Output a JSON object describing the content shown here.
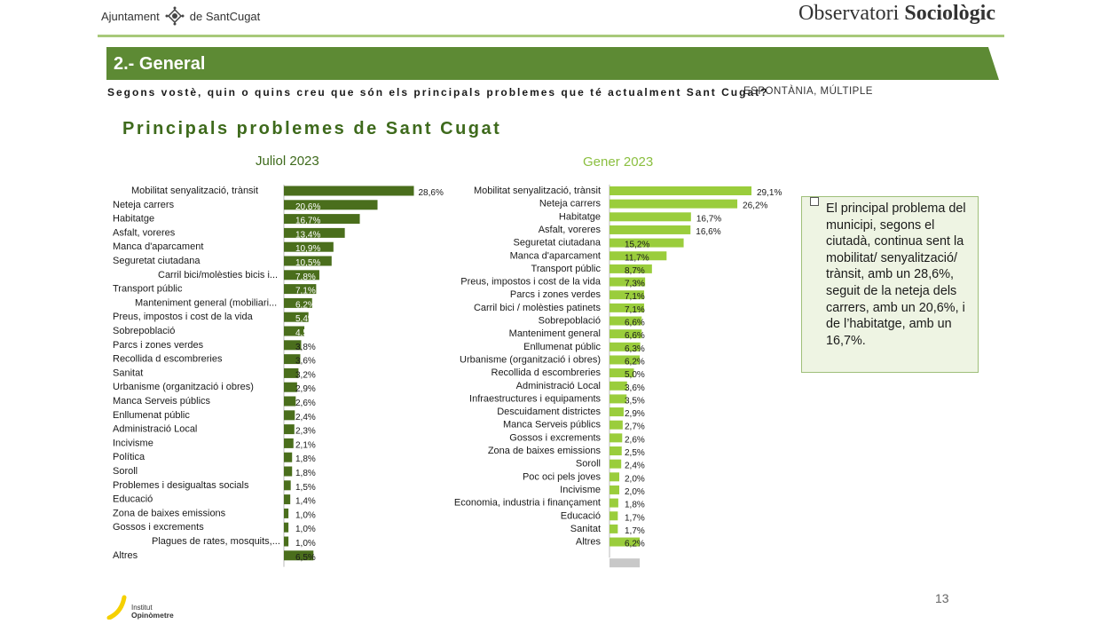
{
  "header": {
    "logo_left_text_1": "Ajuntament",
    "logo_left_text_2": "de SantCugat",
    "logo_right_light": "Observatori",
    "logo_right_bold": "Sociològic"
  },
  "section": {
    "title": "2.- General"
  },
  "question": "Segons vostè, quin o quins creu que són els principals problemes que té actualment Sant Cugat?",
  "answer_type": "ESPONTÀNIA, MÚLTIPLE",
  "chart_title": "Principals problemes de Sant Cugat",
  "colors": {
    "jul_bar": "#4a6e1c",
    "gen_bar": "#9acd3c",
    "other_bar": "#c8c8c8",
    "band": "#5d8a34"
  },
  "chart_data": [
    {
      "type": "bar",
      "orientation": "horizontal",
      "title": "Juliol 2023",
      "categories": [
        "Mobilitat senyalització, trànsit",
        "Neteja carrers",
        "Habitatge",
        "Asfalt, voreres",
        "Manca d'aparcament",
        "Seguretat ciutadana",
        "Carril bici/molèsties bicis i...",
        "Transport públic",
        "Manteniment general (mobiliari...",
        "Preus, impostos i cost de la vida",
        "Sobrepoblació",
        "Parcs i zones verdes",
        "Recollida d escombreries",
        "Sanitat",
        "Urbanisme (organització i obres)",
        "Manca Serveis públics",
        "Enllumenat públic",
        "Administració Local",
        "Incivisme",
        "Política",
        "Soroll",
        "Problemes i desigualtas socials",
        "Educació",
        "Zona de baixes emissions",
        "Gossos i excrements",
        "Plagues de rates, mosquits,...",
        "Altres"
      ],
      "values": [
        28.6,
        20.6,
        16.7,
        13.4,
        10.9,
        10.5,
        7.8,
        7.1,
        6.2,
        5.4,
        4.5,
        3.8,
        3.6,
        3.2,
        2.9,
        2.6,
        2.4,
        2.3,
        2.1,
        1.8,
        1.8,
        1.5,
        1.4,
        1.0,
        1.0,
        1.0,
        6.5
      ],
      "value_labels": [
        "28,6%",
        "20,6%",
        "16,7%",
        "13,4%",
        "10,9%",
        "10,5%",
        "7,8%",
        "7,1%",
        "6,2%",
        "5,4%",
        "4,5%",
        "3,8%",
        "3,6%",
        "3,2%",
        "2,9%",
        "2,6%",
        "2,4%",
        "2,3%",
        "2,1%",
        "1,8%",
        "1,8%",
        "1,5%",
        "1,4%",
        "1,0%",
        "1,0%",
        "1,0%",
        "6,5%"
      ]
    },
    {
      "type": "bar",
      "orientation": "horizontal",
      "title": "Gener 2023",
      "categories": [
        "Mobilitat senyalització, trànsit",
        "Neteja carrers",
        "Habitatge",
        "Asfalt, voreres",
        "Seguretat ciutadana",
        "Manca d'aparcament",
        "Transport públic",
        "Preus, impostos i cost de la vida",
        "Parcs i zones verdes",
        "Carril bici / molèsties patinets",
        "Sobrepoblació",
        "Manteniment general",
        "Enllumenat públic",
        "Urbanisme (organització i obres)",
        "Recollida d escombreries",
        "Administració Local",
        "Infraestructures i equipaments",
        "Descuidament districtes",
        "Manca Serveis públics",
        "Gossos i excrements",
        "Zona de baixes emissions",
        "Soroll",
        "Poc oci pels joves",
        "Incivisme",
        "Economia, industria i finançament",
        "Educació",
        "Sanitat",
        "Altres"
      ],
      "values": [
        29.1,
        26.2,
        16.7,
        16.6,
        15.2,
        11.7,
        8.7,
        7.3,
        7.1,
        7.1,
        6.6,
        6.6,
        6.3,
        6.2,
        5.0,
        3.6,
        3.5,
        2.9,
        2.7,
        2.6,
        2.5,
        2.4,
        2.0,
        2.0,
        1.8,
        1.7,
        1.7,
        6.2
      ],
      "value_labels": [
        "29,1%",
        "26,2%",
        "16,7%",
        "16,6%",
        "15,2%",
        "11,7%",
        "8,7%",
        "7,3%",
        "7,1%",
        "7,1%",
        "6,6%",
        "6,6%",
        "6,3%",
        "6,2%",
        "5,0%",
        "3,6%",
        "3,5%",
        "2,9%",
        "2,7%",
        "2,6%",
        "2,5%",
        "2,4%",
        "2,0%",
        "2,0%",
        "1,8%",
        "1,7%",
        "1,7%",
        "6,2%"
      ],
      "extra_bar_value": 6.2
    }
  ],
  "note": "El principal problema del municipi, segons el ciutadà, continua sent la mobilitat/ senyalització/ trànsit, amb un 28,6%, seguit de la neteja dels carrers, amb un 20,6%, i de l’habitatge, amb un 16,7%.",
  "page_number": "13",
  "footer_logo": {
    "line1": "Institut",
    "line2": "Opinòmetre"
  }
}
